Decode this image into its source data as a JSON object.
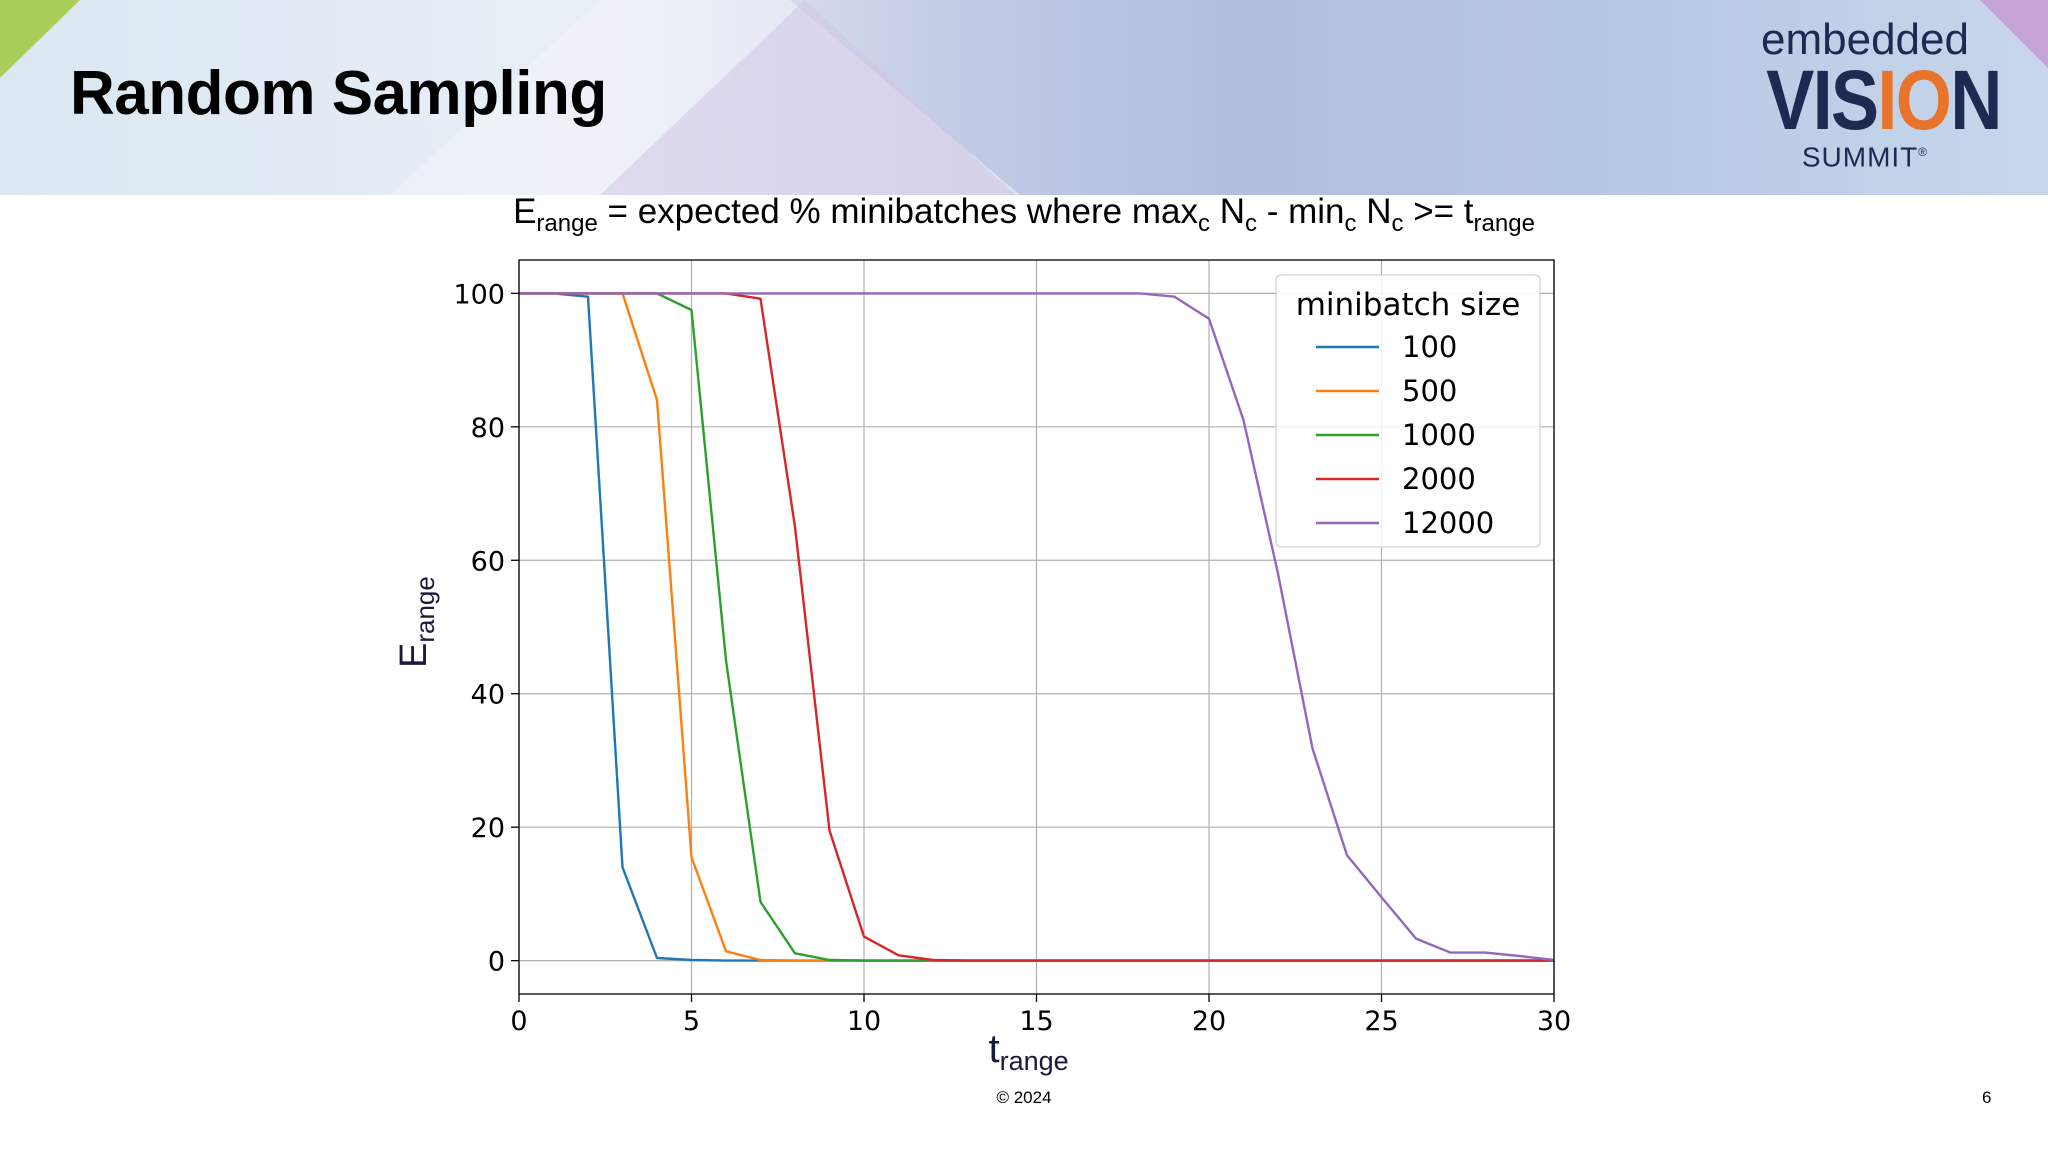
{
  "slide": {
    "title": "Random Sampling",
    "footer": "© 2024",
    "page_number": "6"
  },
  "logo": {
    "line1": "embedded",
    "line2_pre": "VIS",
    "line2_accent": "IO",
    "line2_post": "N",
    "line3": "SUMMIT",
    "mark": "®"
  },
  "chart_title": {
    "p1": "E",
    "s1": "range",
    "p2": " = expected % minibatches where max",
    "s2": "c",
    "p3": " N",
    "s3": "c",
    "p4": " - min",
    "s4": "c",
    "p5": " N",
    "s5": "c",
    "p6": " >= t",
    "s6": "range"
  },
  "colors": {
    "banner_accent_green": "#a9cf5a",
    "banner_accent_purple": "#c6a3d9",
    "logo_navy": "#1d2a52",
    "logo_orange": "#e8732a"
  },
  "chart_data": {
    "type": "line",
    "xlabel": "t",
    "xlabel_sub": "range",
    "ylabel": "E",
    "ylabel_sub": "range",
    "xlim": [
      0,
      30
    ],
    "ylim": [
      -5,
      105
    ],
    "xticks": [
      0,
      5,
      10,
      15,
      20,
      25,
      30
    ],
    "yticks": [
      0,
      20,
      40,
      60,
      80,
      100
    ],
    "grid": true,
    "legend": {
      "title": "minibatch size",
      "position": "top-right"
    },
    "x": [
      0,
      1,
      2,
      3,
      4,
      5,
      6,
      7,
      8,
      9,
      10,
      11,
      12,
      13,
      14,
      15,
      16,
      17,
      18,
      19,
      20,
      21,
      22,
      23,
      24,
      25,
      26,
      27,
      28,
      29,
      30
    ],
    "series": [
      {
        "name": "100",
        "color": "#1f77b4",
        "values": [
          100,
          100,
          99.5,
          14,
          0.4,
          0.1,
          0,
          0,
          0,
          0,
          0,
          0,
          0,
          0,
          0,
          0,
          0,
          0,
          0,
          0,
          0,
          0,
          0,
          0,
          0,
          0,
          0,
          0,
          0,
          0,
          0
        ]
      },
      {
        "name": "500",
        "color": "#ff7f0e",
        "values": [
          100,
          100,
          100,
          100,
          84,
          15.5,
          1.4,
          0.1,
          0,
          0,
          0,
          0,
          0,
          0,
          0,
          0,
          0,
          0,
          0,
          0,
          0,
          0,
          0,
          0,
          0,
          0,
          0,
          0,
          0,
          0,
          0
        ]
      },
      {
        "name": "1000",
        "color": "#2ca02c",
        "values": [
          100,
          100,
          100,
          100,
          100,
          97.5,
          45,
          8.8,
          1.1,
          0.1,
          0,
          0,
          0,
          0,
          0,
          0,
          0,
          0,
          0,
          0,
          0,
          0,
          0,
          0,
          0,
          0,
          0,
          0,
          0,
          0,
          0
        ]
      },
      {
        "name": "2000",
        "color": "#d62728",
        "values": [
          100,
          100,
          100,
          100,
          100,
          100,
          100,
          99.2,
          65,
          19.5,
          3.6,
          0.8,
          0.1,
          0,
          0,
          0,
          0,
          0,
          0,
          0,
          0,
          0,
          0,
          0,
          0,
          0,
          0,
          0,
          0,
          0,
          0
        ]
      },
      {
        "name": "12000",
        "color": "#9467bd",
        "values": [
          100,
          100,
          100,
          100,
          100,
          100,
          100,
          100,
          100,
          100,
          100,
          100,
          100,
          100,
          100,
          100,
          100,
          100,
          100,
          99.5,
          96.2,
          81,
          58,
          31.8,
          15.8,
          9.5,
          3.3,
          1.2,
          1.2,
          0.7,
          0.1
        ]
      }
    ]
  }
}
